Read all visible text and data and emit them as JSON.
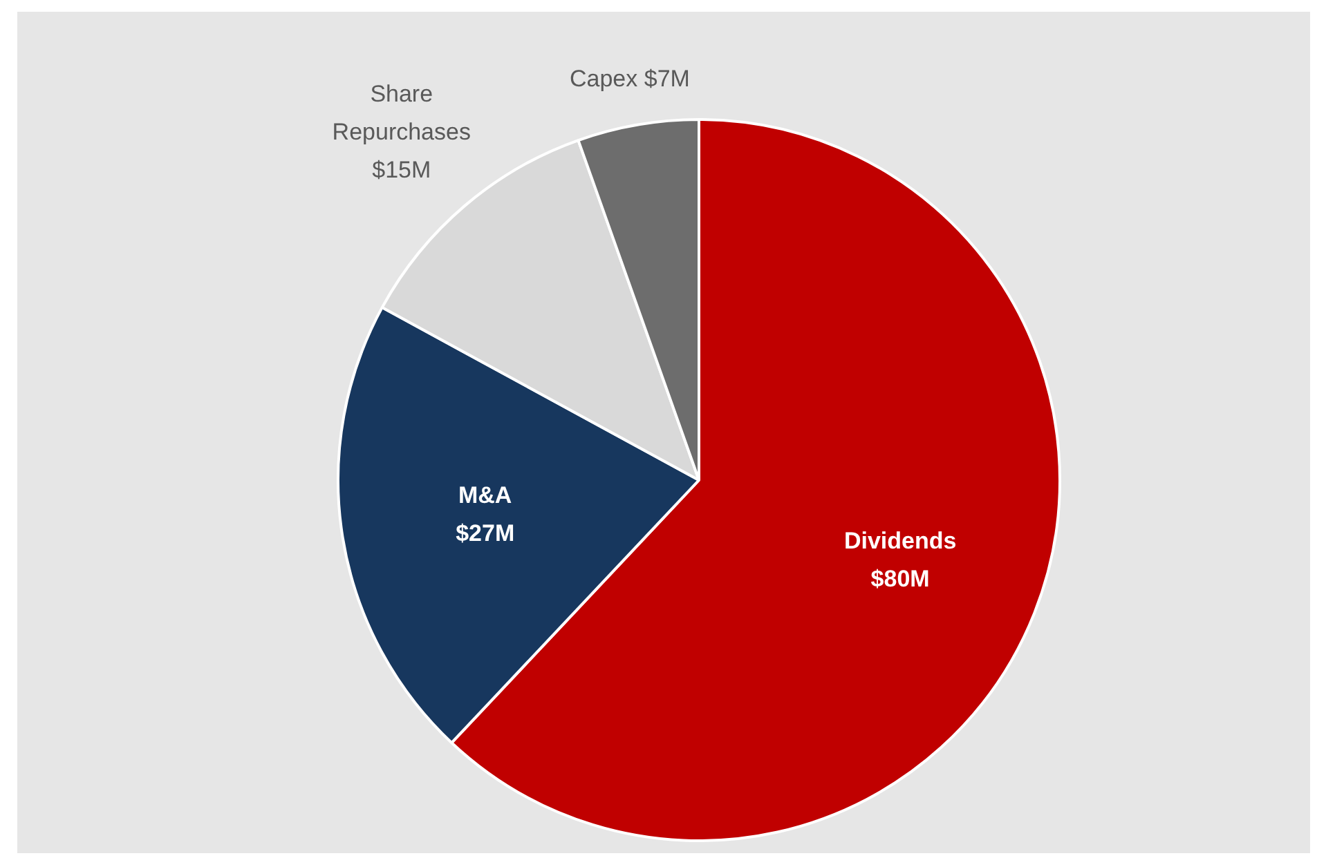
{
  "chart_data": {
    "type": "pie",
    "categories": [
      "Dividends",
      "M&A",
      "Share Repurchases",
      "Capex"
    ],
    "values": [
      80,
      27,
      15,
      7
    ],
    "colors": [
      "#c00000",
      "#17375e",
      "#d9d9d9",
      "#6d6d6d"
    ],
    "value_labels": [
      "$80M",
      "$27M",
      "$15M",
      "$7M"
    ]
  }
}
